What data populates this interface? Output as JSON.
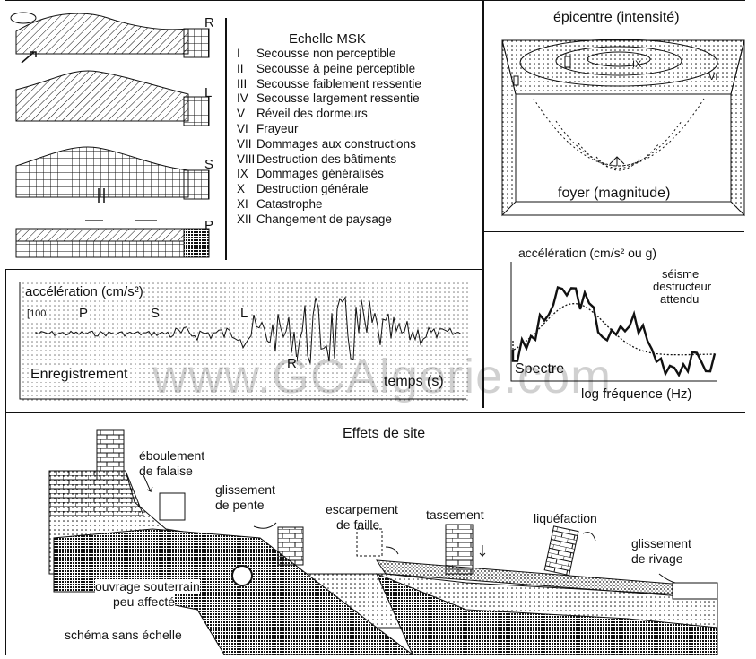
{
  "watermark": "www.GCAlgerie.com",
  "waves": {
    "R": "R",
    "L": "L",
    "S": "S",
    "P": "P"
  },
  "msk": {
    "title": "Echelle MSK",
    "levels": [
      {
        "num": "I",
        "text": "Secousse non perceptible"
      },
      {
        "num": "II",
        "text": "Secousse à peine perceptible"
      },
      {
        "num": "III",
        "text": "Secousse faiblement ressentie"
      },
      {
        "num": "IV",
        "text": "Secousse largement ressentie"
      },
      {
        "num": "V",
        "text": "Réveil des dormeurs"
      },
      {
        "num": "VI",
        "text": "Frayeur"
      },
      {
        "num": "VII",
        "text": "Dommages aux constructions"
      },
      {
        "num": "VIII",
        "text": "Destruction des bâtiments"
      },
      {
        "num": "IX",
        "text": "Dommages généralisés"
      },
      {
        "num": "X",
        "text": "Destruction générale"
      },
      {
        "num": "XI",
        "text": "Catastrophe"
      },
      {
        "num": "XII",
        "text": "Changement de paysage"
      }
    ]
  },
  "epicentre": {
    "title": "épicentre (intensité)",
    "marks": {
      "ix": "IX",
      "vi": "VI"
    },
    "foyer": "foyer (magnitude)"
  },
  "record": {
    "ylabel": "accélération (cm/s²)",
    "scale": "100",
    "p": "P",
    "s": "S",
    "l": "L",
    "r": "R",
    "label": "Enregistrement",
    "xlabel": "temps (s)"
  },
  "spectrum": {
    "ylabel": "accélération (cm/s² ou g)",
    "annotation_line1": "séisme",
    "annotation_line2": "destructeur",
    "annotation_line3": "attendu",
    "label": "Spectre",
    "xlabel": "log fréquence (Hz)"
  },
  "site": {
    "title": "Effets de site",
    "eboulement_1": "éboulement",
    "eboulement_2": "de falaise",
    "glissement_pente_1": "glissement",
    "glissement_pente_2": "de pente",
    "escarpement_1": "escarpement",
    "escarpement_2": "de faille",
    "tassement": "tassement",
    "liquefaction": "liquéfaction",
    "glissement_rivage_1": "glissement",
    "glissement_rivage_2": "de rivage",
    "ouvrage_1": "ouvrage souterrain",
    "ouvrage_2": "peu affecté",
    "schema": "schéma sans échelle"
  }
}
